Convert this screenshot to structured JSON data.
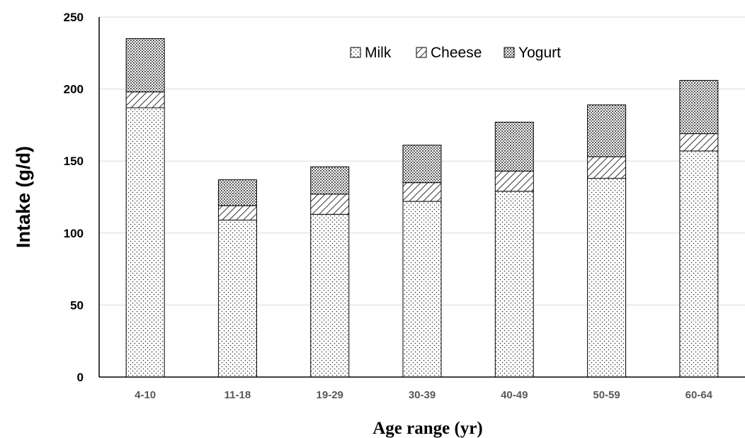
{
  "chart_data": {
    "type": "bar",
    "stacked": true,
    "categories": [
      "4-10",
      "11-18",
      "19-29",
      "30-39",
      "40-49",
      "50-59",
      "60-64"
    ],
    "series": [
      {
        "name": "Milk",
        "values": [
          187,
          109,
          113,
          122,
          129,
          138,
          157
        ],
        "pattern": "dots"
      },
      {
        "name": "Cheese",
        "values": [
          11,
          10,
          14,
          13,
          14,
          15,
          12
        ],
        "pattern": "hatch"
      },
      {
        "name": "Yogurt",
        "values": [
          37,
          18,
          19,
          26,
          34,
          36,
          37
        ],
        "pattern": "crosshatch"
      }
    ],
    "xlabel": "Age range (yr)",
    "ylabel": "Intake (g/d)",
    "ylim": [
      0,
      250
    ],
    "yticks": [
      0,
      50,
      100,
      150,
      200,
      250
    ],
    "grid": true,
    "legend_position": "top-center"
  }
}
